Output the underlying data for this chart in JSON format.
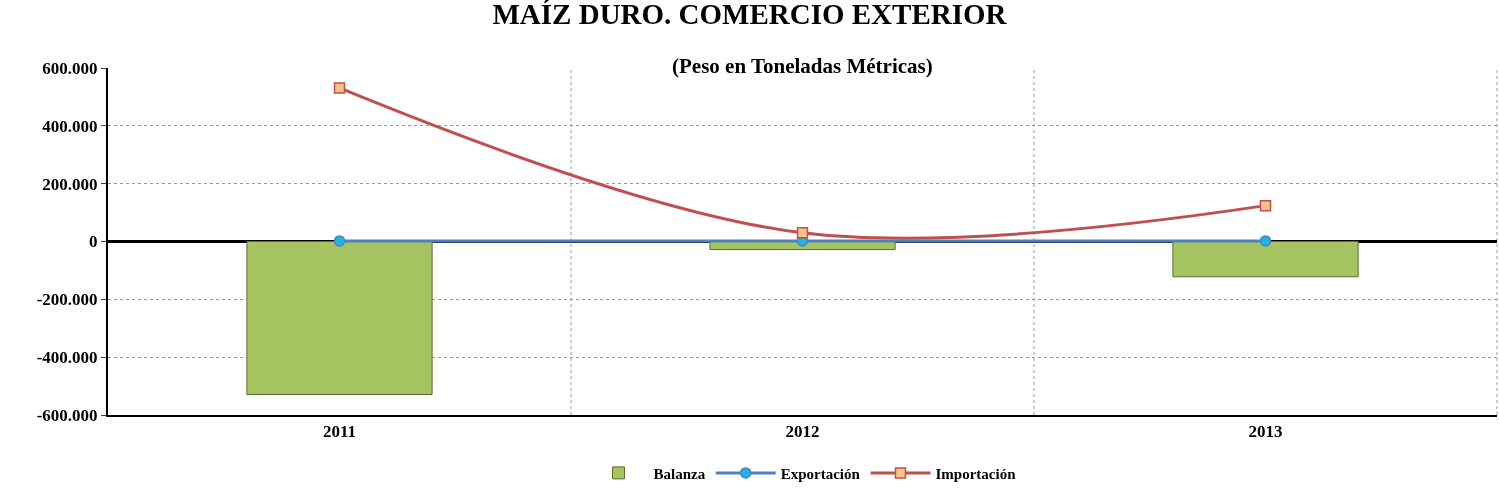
{
  "chart_data": {
    "type": "bar",
    "title": "MAÍZ DURO. COMERCIO EXTERIOR",
    "subtitle": "(Peso en Toneladas Métricas)",
    "categories": [
      "2011",
      "2012",
      "2013"
    ],
    "series": [
      {
        "name": "Balanza",
        "color": "#a6c462",
        "values": [
          -529000,
          -28000,
          -122000
        ]
      },
      {
        "name": "Exportación",
        "type": "line",
        "color": "#4f81bd",
        "marker": "circle",
        "values": [
          2000,
          2000,
          2000
        ]
      },
      {
        "name": "Importación",
        "type": "line",
        "color": "#c0504d",
        "marker": "square",
        "values": [
          531000,
          30000,
          124000
        ]
      }
    ],
    "ylim": [
      -600000,
      600000
    ],
    "yticks": [
      {
        "value": -600000,
        "label": "-600.000"
      },
      {
        "value": -400000,
        "label": "-400.000"
      },
      {
        "value": -200000,
        "label": "-200.000"
      },
      0,
      {
        "value": 200000,
        "label": "200.000"
      },
      {
        "value": 400000,
        "label": "400.000"
      },
      {
        "value": 600000,
        "label": "600.000"
      }
    ],
    "grid": true,
    "legend": "bottom"
  }
}
